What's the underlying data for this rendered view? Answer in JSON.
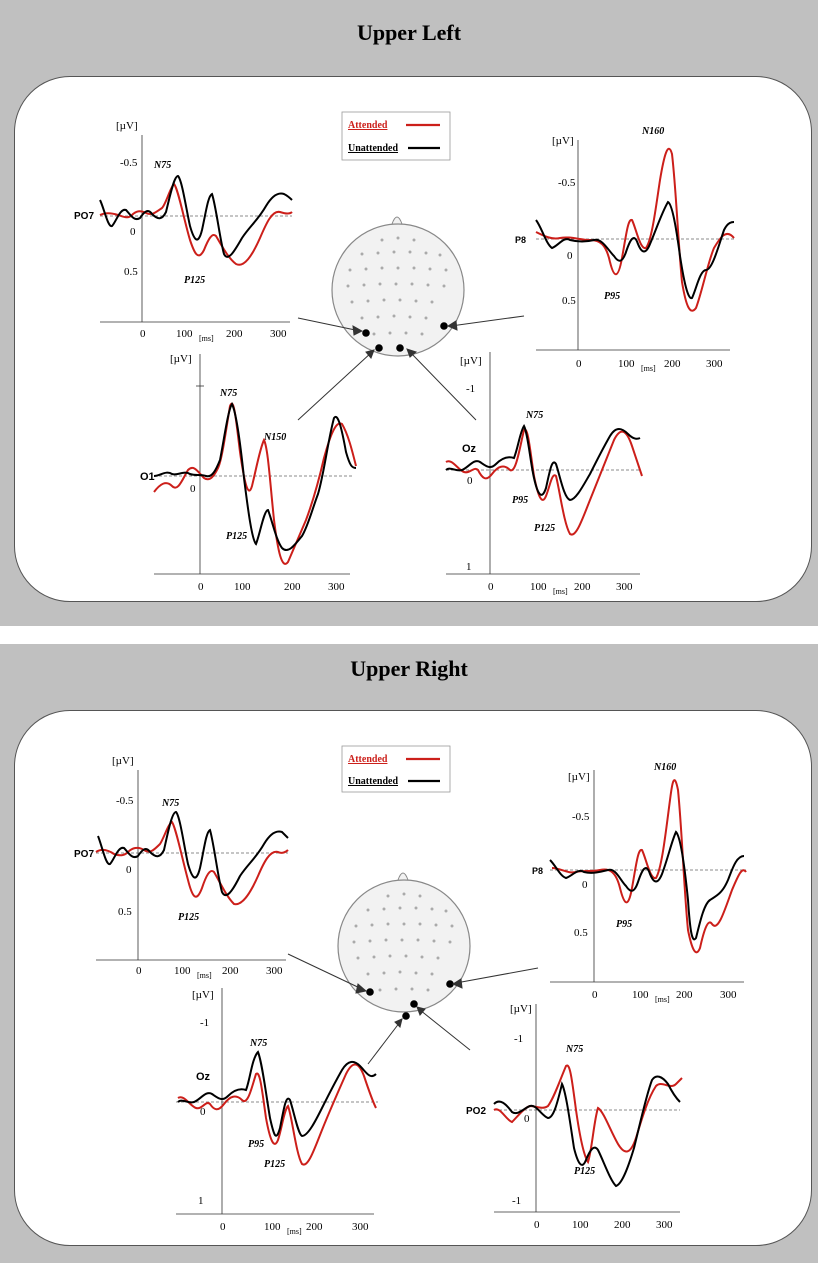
{
  "sections": [
    {
      "title": "Upper Left",
      "legend": {
        "attended": "Attended",
        "unattended": "Unattended"
      },
      "plots": [
        {
          "channel": "PO7",
          "yunit": "[µV]",
          "yticks": [
            "-0.5",
            "0",
            "0.5"
          ],
          "xticks": [
            "0",
            "100",
            "200",
            "300"
          ],
          "xunit": "[ms]",
          "peaks": [
            "N75",
            "P125"
          ]
        },
        {
          "channel": "P8",
          "yunit": "[µV]",
          "yticks": [
            "-0.5",
            "0",
            "0.5"
          ],
          "xticks": [
            "0",
            "100",
            "200",
            "300"
          ],
          "xunit": "[ms]",
          "peaks": [
            "N160",
            "P95"
          ]
        },
        {
          "channel": "O1",
          "yunit": "[µV]",
          "yticks": [
            "0"
          ],
          "xticks": [
            "0",
            "100",
            "200",
            "300"
          ],
          "xunit": "",
          "peaks": [
            "N75",
            "N150",
            "P125"
          ]
        },
        {
          "channel": "Oz",
          "yunit": "[µV]",
          "yticks": [
            "-1",
            "0",
            "1"
          ],
          "xticks": [
            "0",
            "100",
            "200",
            "300"
          ],
          "xunit": "[ms]",
          "peaks": [
            "N75",
            "P95",
            "P125"
          ]
        }
      ]
    },
    {
      "title": "Upper Right",
      "legend": {
        "attended": "Attended",
        "unattended": "Unattended"
      },
      "plots": [
        {
          "channel": "PO7",
          "yunit": "[µV]",
          "yticks": [
            "-0.5",
            "0",
            "0.5"
          ],
          "xticks": [
            "0",
            "100",
            "200",
            "300"
          ],
          "xunit": "[ms]",
          "peaks": [
            "N75",
            "P125"
          ]
        },
        {
          "channel": "P8",
          "yunit": "[µV]",
          "yticks": [
            "-0.5",
            "0",
            "0.5"
          ],
          "xticks": [
            "0",
            "100",
            "200",
            "300"
          ],
          "xunit": "[ms]",
          "peaks": [
            "N160",
            "P95"
          ]
        },
        {
          "channel": "Oz",
          "yunit": "[µV]",
          "yticks": [
            "-1",
            "0",
            "1"
          ],
          "xticks": [
            "0",
            "100",
            "200",
            "300"
          ],
          "xunit": "[ms]",
          "peaks": [
            "N75",
            "P95",
            "P125"
          ]
        },
        {
          "channel": "PO2",
          "yunit": "[µV]",
          "yticks": [
            "-1",
            "0",
            "-1"
          ],
          "xticks": [
            "0",
            "100",
            "200",
            "300"
          ],
          "xunit": "",
          "peaks": [
            "N75",
            "P125"
          ]
        }
      ]
    }
  ],
  "colors": {
    "attended": "#cc1f1a",
    "unattended": "#000000",
    "band": "#c0c0c0",
    "zero_line": "#666666"
  }
}
